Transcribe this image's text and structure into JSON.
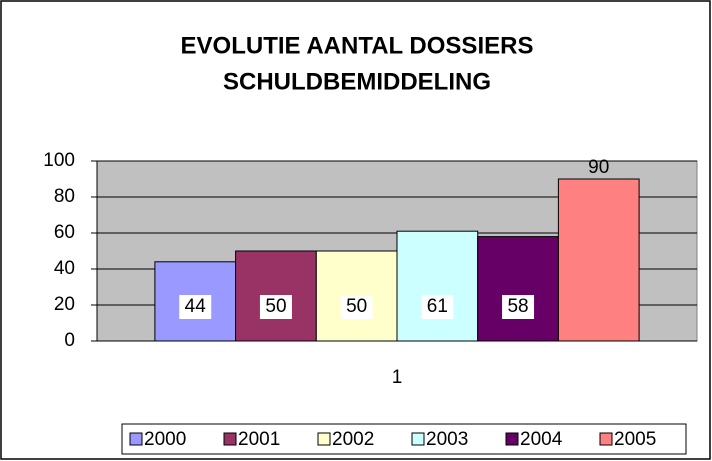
{
  "chart_data": {
    "type": "bar",
    "title": "EVOLUTIE AANTAL DOSSIERS",
    "subtitle": "SCHULDBEMIDDELING",
    "categories": [
      "1"
    ],
    "series": [
      {
        "name": "2000",
        "color": "#9999ff",
        "values": [
          44
        ]
      },
      {
        "name": "2001",
        "color": "#993366",
        "values": [
          50
        ]
      },
      {
        "name": "2002",
        "color": "#ffffcc",
        "values": [
          50
        ]
      },
      {
        "name": "2003",
        "color": "#ccffff",
        "values": [
          61
        ]
      },
      {
        "name": "2004",
        "color": "#660066",
        "values": [
          58
        ]
      },
      {
        "name": "2005",
        "color": "#ff8080",
        "values": [
          90
        ]
      }
    ],
    "ylim": [
      0,
      100
    ],
    "yticks": [
      0,
      20,
      40,
      60,
      80,
      100
    ],
    "grid": true,
    "legend": "bottom"
  }
}
